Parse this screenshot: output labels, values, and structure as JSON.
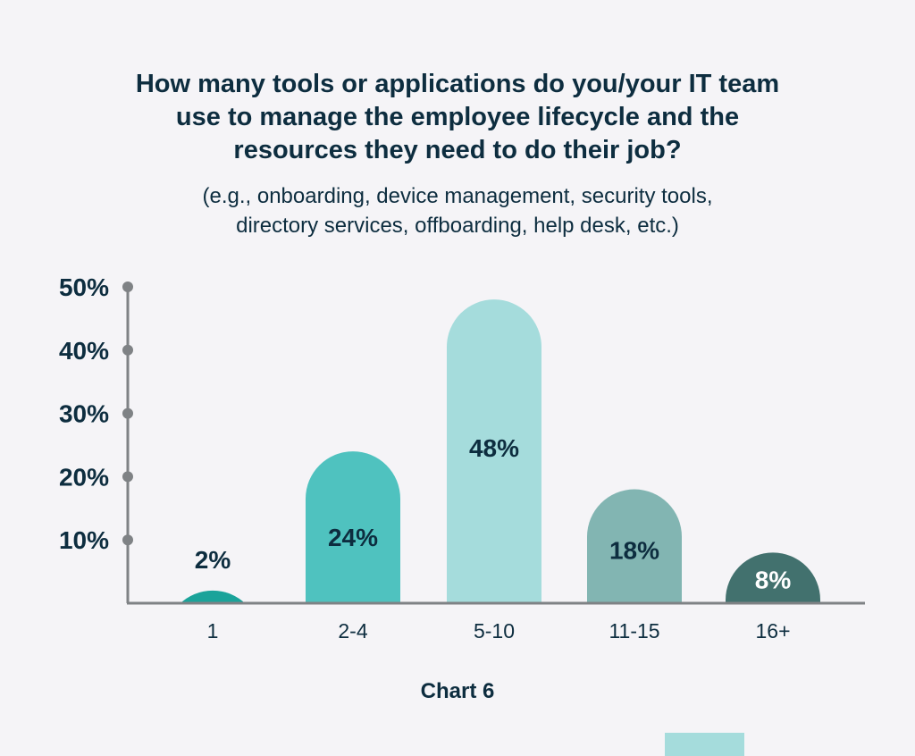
{
  "title_lines": [
    "How many tools or applications do you/your IT team",
    "use to manage the employee lifecycle and the",
    "resources they need to do their job?"
  ],
  "subtitle_lines": [
    "(e.g., onboarding, device management, security tools,",
    "directory services, offboarding, help desk, etc.)"
  ],
  "caption": "Chart 6",
  "colors": {
    "background": "#f5f4f7",
    "text": "#0d2d3f",
    "axis": "#7f8285",
    "bar_1": "#1aa39a",
    "bar_2_4": "#4fc2bf",
    "bar_5_10": "#a5dcdc",
    "bar_11_15": "#82b5b2",
    "bar_16_plus": "#42716e"
  },
  "chart_data": {
    "type": "bar",
    "title": "How many tools or applications do you/your IT team use to manage the employee lifecycle and the resources they need to do their job?",
    "subtitle": "(e.g., onboarding, device management, security tools, directory services, offboarding, help desk, etc.)",
    "categories": [
      "1",
      "2-4",
      "5-10",
      "11-15",
      "16+"
    ],
    "values": [
      2,
      24,
      48,
      18,
      8
    ],
    "data_labels": [
      "2%",
      "24%",
      "48%",
      "18%",
      "8%"
    ],
    "y_ticks": [
      10,
      20,
      30,
      40,
      50
    ],
    "y_tick_labels": [
      "10%",
      "20%",
      "30%",
      "40%",
      "50%"
    ],
    "ylim": [
      0,
      50
    ],
    "xlabel": "",
    "ylabel": "",
    "grid": false,
    "legend": "none",
    "bar_colors": [
      "#1aa39a",
      "#4fc2bf",
      "#a5dcdc",
      "#82b5b2",
      "#42716e"
    ],
    "label_colors": [
      "#0d2d3f",
      "#0d2d3f",
      "#0d2d3f",
      "#0d2d3f",
      "#ffffff"
    ]
  }
}
